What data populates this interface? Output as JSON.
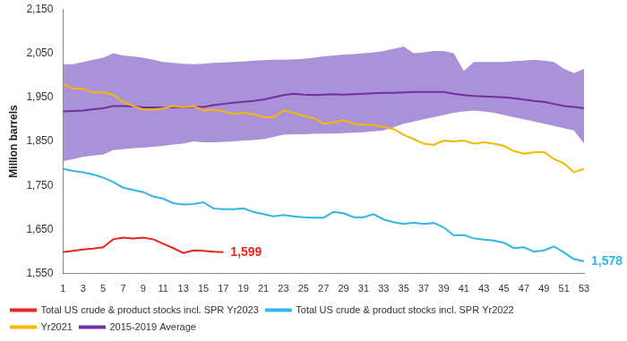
{
  "chart_data": {
    "type": "line",
    "y_label": "Million barrels",
    "categories": [
      1,
      null,
      3,
      null,
      5,
      null,
      7,
      null,
      9,
      null,
      11,
      null,
      13,
      null,
      15,
      null,
      17,
      null,
      19,
      null,
      21,
      null,
      23,
      null,
      25,
      null,
      27,
      null,
      29,
      null,
      31,
      null,
      33,
      null,
      35,
      null,
      37,
      null,
      39,
      null,
      41,
      null,
      43,
      null,
      45,
      null,
      47,
      null,
      49,
      null,
      51,
      null,
      53
    ],
    "ylim": [
      1550,
      2150
    ],
    "yticks": [
      {
        "value": 1550,
        "label": "1,550"
      },
      {
        "value": 1650,
        "label": "1,650"
      },
      {
        "value": 1750,
        "label": "1,750"
      },
      {
        "value": 1850,
        "label": "1,850"
      },
      {
        "value": 1950,
        "label": "1,950"
      },
      {
        "value": 2050,
        "label": "2,050"
      },
      {
        "value": 2150,
        "label": "2,150"
      }
    ],
    "grid": false,
    "legend": "bottom",
    "range_band": {
      "color": "#9a7fd1",
      "low": [
        1805,
        1810,
        1815,
        1818,
        1820,
        1830,
        1832,
        1835,
        1836,
        1838,
        1840,
        1843,
        1845,
        1850,
        1848,
        1848,
        1849,
        1850,
        1852,
        1853,
        1855,
        1860,
        1865,
        1866,
        1866,
        1867,
        1868,
        1868,
        1869,
        1870,
        1871,
        1873,
        1875,
        1882,
        1890,
        1895,
        1900,
        1905,
        1910,
        1915,
        1918,
        1920,
        1918,
        1915,
        1910,
        1905,
        1900,
        1895,
        1890,
        1885,
        1880,
        1875,
        1845
      ],
      "high": [
        2025,
        2025,
        2030,
        2035,
        2040,
        2050,
        2045,
        2043,
        2040,
        2035,
        2030,
        2028,
        2026,
        2025,
        2026,
        2028,
        2029,
        2030,
        2031,
        2033,
        2034,
        2035,
        2035,
        2036,
        2037,
        2040,
        2043,
        2045,
        2047,
        2048,
        2050,
        2052,
        2055,
        2060,
        2065,
        2050,
        2052,
        2055,
        2055,
        2050,
        2010,
        2030,
        2030,
        2030,
        2030,
        2032,
        2033,
        2035,
        2033,
        2030,
        2015,
        2005,
        2015
      ]
    },
    "series": [
      {
        "name": "2015-2019 Average",
        "color": "#7030a0",
        "values": [
          1918,
          1919,
          1920,
          1923,
          1925,
          1930,
          1930,
          1929,
          1927,
          1927,
          1927,
          1927,
          1928,
          1928,
          1928,
          1932,
          1935,
          1938,
          1940,
          1942,
          1945,
          1950,
          1955,
          1958,
          1956,
          1955,
          1956,
          1957,
          1956,
          1957,
          1958,
          1959,
          1960,
          1960,
          1961,
          1962,
          1962,
          1962,
          1962,
          1958,
          1955,
          1953,
          1952,
          1951,
          1950,
          1948,
          1945,
          1942,
          1940,
          1935,
          1930,
          1928,
          1925
        ]
      },
      {
        "name": "Yr2021",
        "color": "#f5b800",
        "values": [
          1980,
          1970,
          1970,
          1960,
          1962,
          1955,
          1940,
          1930,
          1922,
          1922,
          1925,
          1930,
          1928,
          1930,
          1920,
          1922,
          1918,
          1912,
          1915,
          1912,
          1905,
          1905,
          1920,
          1915,
          1908,
          1903,
          1890,
          1893,
          1898,
          1890,
          1888,
          1887,
          1883,
          1878,
          1865,
          1855,
          1845,
          1842,
          1852,
          1850,
          1852,
          1845,
          1848,
          1845,
          1840,
          1828,
          1822,
          1825,
          1826,
          1810,
          1800,
          1780,
          1788
        ]
      },
      {
        "name": "Total US crude & product stocks incl. SPR Yr2022",
        "color": "#33b5e5",
        "values": [
          1788,
          1783,
          1780,
          1775,
          1768,
          1758,
          1745,
          1740,
          1735,
          1725,
          1720,
          1710,
          1707,
          1708,
          1712,
          1698,
          1696,
          1696,
          1698,
          1690,
          1685,
          1680,
          1683,
          1680,
          1678,
          1677,
          1677,
          1690,
          1687,
          1678,
          1678,
          1685,
          1673,
          1667,
          1663,
          1666,
          1663,
          1665,
          1655,
          1637,
          1638,
          1630,
          1627,
          1625,
          1620,
          1608,
          1610,
          1600,
          1603,
          1612,
          1598,
          1583,
          1578
        ]
      },
      {
        "name": "Total US crude & product stocks incl. SPR Yr2023",
        "color": "#e8251f",
        "values": [
          1599,
          1602,
          1605,
          1607,
          1610,
          1628,
          1632,
          1630,
          1632,
          1628,
          1618,
          1608,
          1597,
          1603,
          1602,
          1600,
          1599,
          null,
          null,
          null,
          null,
          null,
          null,
          null,
          null,
          null,
          null,
          null,
          null,
          null,
          null,
          null,
          null,
          null,
          null,
          null,
          null,
          null,
          null,
          null,
          null,
          null,
          null,
          null,
          null,
          null,
          null,
          null,
          null,
          null,
          null,
          null,
          null
        ]
      }
    ],
    "annotations": [
      {
        "text": "1,599",
        "x_index": 16,
        "y": 1599,
        "color": "#e8251f"
      },
      {
        "text": "1,578",
        "x_index": 52,
        "y": 1578,
        "color": "#33b5e5"
      }
    ]
  }
}
